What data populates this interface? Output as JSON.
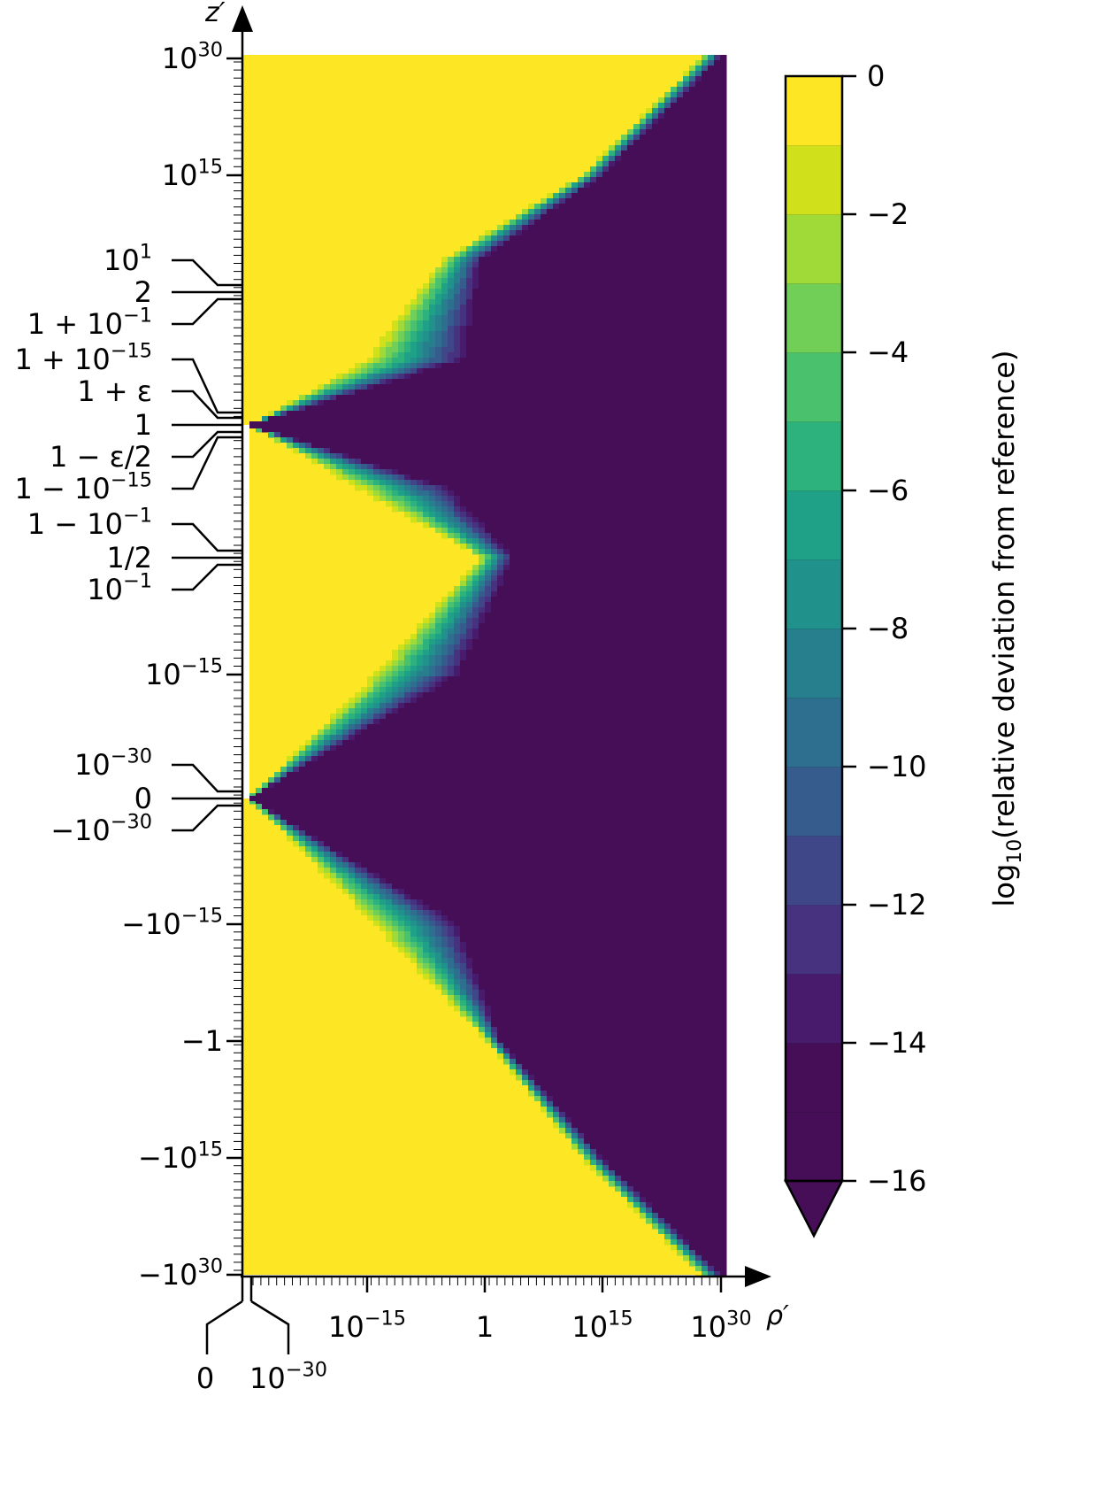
{
  "chart_data": {
    "type": "heatmap",
    "x_axis": {
      "label": "ρ′",
      "scale": "symmetric log (ρ′ ≥ 0), log10 decades from −30 to 30",
      "ticks": [
        {
          "label": "10−15",
          "value": "1e-15"
        },
        {
          "label": "1",
          "value": "1"
        },
        {
          "label": "1015",
          "value": "1e15"
        },
        {
          "label": "1030",
          "value": "1e30"
        }
      ],
      "special_ticks": [
        {
          "label": "0",
          "value": "0"
        },
        {
          "label": "10−30",
          "value": "1e-30"
        }
      ]
    },
    "y_axis": {
      "label": "z′",
      "ticks": [
        {
          "label": "1030",
          "value": "1e30"
        },
        {
          "label": "1015",
          "value": "1e15"
        },
        {
          "label": "101",
          "value": "10"
        },
        {
          "label": "2",
          "value": "2"
        },
        {
          "label": "1 + 10−1",
          "value": "1.1"
        },
        {
          "label": "1 + 10−15",
          "value": "1 + 1e-15"
        },
        {
          "label": "1 + ε",
          "value": "1 + eps"
        },
        {
          "label": "1",
          "value": "1"
        },
        {
          "label": "1 − ε/2",
          "value": "1 - eps/2"
        },
        {
          "label": "1 − 10−15",
          "value": "1 - 1e-15"
        },
        {
          "label": "1 − 10−1",
          "value": "0.9"
        },
        {
          "label": "1/2",
          "value": "0.5"
        },
        {
          "label": "10−1",
          "value": "0.1"
        },
        {
          "label": "10−15",
          "value": "1e-15"
        },
        {
          "label": "10−30",
          "value": "1e-30"
        },
        {
          "label": "0",
          "value": "0"
        },
        {
          "label": "−10−30",
          "value": "-1e-30"
        },
        {
          "label": "−10−15",
          "value": "-1e-15"
        },
        {
          "label": "−1",
          "value": "-1"
        },
        {
          "label": "−1015",
          "value": "-1e15"
        },
        {
          "label": "−1030",
          "value": "-1e30"
        }
      ]
    },
    "colorbar": {
      "label": "log10(relative deviation from reference)",
      "range": [
        -16,
        0
      ],
      "levels": [
        -16,
        -15,
        -14,
        -13,
        -12,
        -11,
        -10,
        -9,
        -8,
        -7,
        -6,
        -5,
        -4,
        -3,
        -2,
        -1,
        0
      ],
      "ticks": [
        0,
        -2,
        -4,
        -6,
        -8,
        -10,
        -12,
        -14,
        -16
      ],
      "tick_labels": [
        "0",
        "−2",
        "−4",
        "−6",
        "−8",
        "−10",
        "−12",
        "−14",
        "−16"
      ],
      "extend": "min",
      "colors": [
        "#450e57",
        "#481b6d",
        "#46327e",
        "#3f4788",
        "#365c8d",
        "#2e6e8e",
        "#277f8e",
        "#21918c",
        "#1fa187",
        "#2db27d",
        "#4ac16d",
        "#71cf57",
        "#a0da39",
        "#d0e11c",
        "#fde725"
      ]
    },
    "transition_boundary": {
      "description": "log10(ρ′) at which the deviation reaches −16 (dark region), as a function of z′ region",
      "points": [
        {
          "z": "1e30",
          "rho_log10_yellow_end": 27,
          "rho_log10_dark_start": 30
        },
        {
          "z": "1e15",
          "rho_log10_yellow_end": 12,
          "rho_log10_dark_start": 15
        },
        {
          "z": "10",
          "rho_log10_yellow_end": -6,
          "rho_log10_dark_start": 0
        },
        {
          "z": "1 + 1e-15",
          "rho_log10_yellow_end": -16,
          "rho_log10_dark_start": -1
        },
        {
          "z": "1",
          "rho_log10_yellow_end": -30,
          "rho_log10_dark_start": -30
        },
        {
          "z": "1 - 1e-15",
          "rho_log10_yellow_end": -17,
          "rho_log10_dark_start": -3
        },
        {
          "z": "0.5",
          "rho_log10_yellow_end": -1,
          "rho_log10_dark_start": 4
        },
        {
          "z": "1e-15",
          "rho_log10_yellow_end": -15,
          "rho_log10_dark_start": -2
        },
        {
          "z": "0",
          "rho_log10_yellow_end": -30,
          "rho_log10_dark_start": -30
        },
        {
          "z": "-1e-15",
          "rho_log10_yellow_end": -15,
          "rho_log10_dark_start": -2
        },
        {
          "z": "-1",
          "rho_log10_yellow_end": 0,
          "rho_log10_dark_start": 2
        },
        {
          "z": "-1e15",
          "rho_log10_yellow_end": 12,
          "rho_log10_dark_start": 15
        },
        {
          "z": "-1e30",
          "rho_log10_yellow_end": 27,
          "rho_log10_dark_start": 30
        }
      ]
    }
  }
}
